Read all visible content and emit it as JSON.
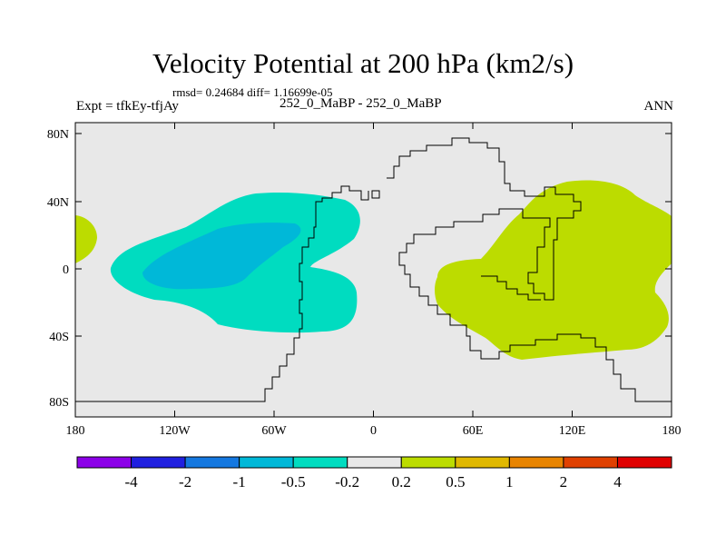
{
  "title": "Velocity Potential at 200 hPa (km2/s)",
  "stats_line": "rmsd= 0.24684 diff= 1.16699e-05",
  "left_label": "Expt = tfkEy-tfjAy",
  "center_label": "252_0_MaBP - 252_0_MaBP",
  "right_label": "ANN",
  "map": {
    "projection": "cylindrical equidistant",
    "lon_range": [
      -180,
      180
    ],
    "lat_range": [
      -90,
      90
    ],
    "lon_ticks": [
      "180",
      "120W",
      "60W",
      "0",
      "60E",
      "120E",
      "180"
    ],
    "lat_ticks": [
      "80N",
      "40N",
      "0",
      "40S",
      "80S"
    ],
    "background_color": "#e8e8e8",
    "fill_regions": [
      {
        "name": "negative-anomaly-region",
        "range": "-0.5 to -0.2",
        "color": "#00dcc0"
      },
      {
        "name": "negative-anomaly-core",
        "range": "-1 to -0.5",
        "color": "#00b8d8"
      },
      {
        "name": "positive-anomaly-region",
        "range": "0.2 to 0.5",
        "color": "#bcdc00"
      },
      {
        "name": "positive-anomaly-edge-west",
        "range": "0.2 to 0.5",
        "color": "#bcdc00"
      }
    ]
  },
  "colorbar": {
    "colors": [
      "#8c00e8",
      "#2020e0",
      "#1478e0",
      "#00b8d8",
      "#00dcc0",
      "#e8e8e8",
      "#bcdc00",
      "#e0b800",
      "#e88400",
      "#e04000",
      "#e00000"
    ],
    "labels": [
      "-4",
      "-2",
      "-1",
      "-0.5",
      "-0.2",
      "0.2",
      "0.5",
      "1",
      "2",
      "4"
    ]
  }
}
